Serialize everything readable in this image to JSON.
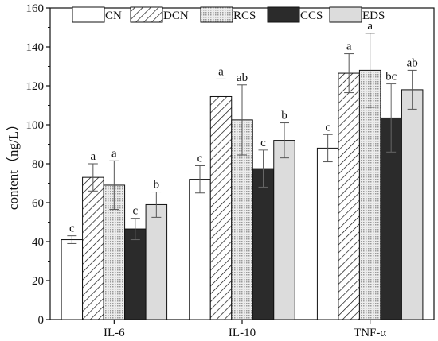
{
  "chart_data": {
    "type": "bar",
    "title": "",
    "xlabel": "",
    "ylabel": "content（ng/L）",
    "ylim": [
      0,
      160
    ],
    "yticks": [
      0,
      20,
      40,
      60,
      80,
      100,
      120,
      140,
      160
    ],
    "grid": false,
    "legend_position": "top",
    "categories": [
      "IL-6",
      "IL-10",
      "TNF-α"
    ],
    "series": [
      {
        "name": "CN",
        "pattern": "empty",
        "values": [
          41,
          72,
          88
        ],
        "errors": [
          2,
          7,
          7
        ],
        "labels": [
          "c",
          "c",
          "c"
        ]
      },
      {
        "name": "DCN",
        "pattern": "hatch",
        "values": [
          73,
          114.5,
          126.5
        ],
        "errors": [
          7,
          9,
          10
        ],
        "labels": [
          "a",
          "a",
          "a"
        ]
      },
      {
        "name": "RCS",
        "pattern": "dots",
        "values": [
          69,
          102.5,
          128
        ],
        "errors": [
          12.5,
          18,
          19
        ],
        "labels": [
          "a",
          "ab",
          "a"
        ]
      },
      {
        "name": "CCS",
        "pattern": "solid",
        "values": [
          46.5,
          77.5,
          103.5
        ],
        "errors": [
          5.5,
          9.5,
          17.5
        ],
        "labels": [
          "c",
          "c",
          "bc"
        ]
      },
      {
        "name": "EDS",
        "pattern": "lightgray",
        "values": [
          59,
          92,
          118
        ],
        "errors": [
          6.5,
          9,
          10
        ],
        "labels": [
          "b",
          "b",
          "ab"
        ]
      }
    ],
    "colors": {
      "solid": "#2b2b2b",
      "light": "#dcdcdc",
      "dots": "#cfcfcf",
      "stroke": "#111111"
    }
  }
}
